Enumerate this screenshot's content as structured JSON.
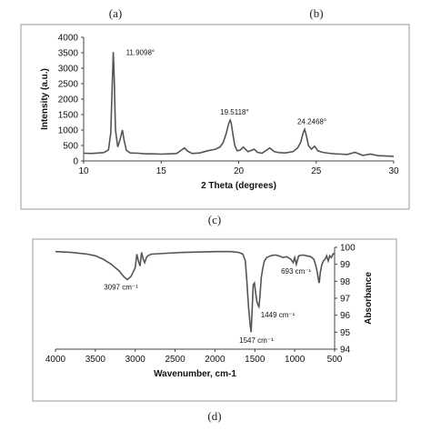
{
  "panel_labels": {
    "a": "(a)",
    "b": "(b)",
    "c": "(c)",
    "d": "(d)"
  },
  "chart_data": [
    {
      "type": "line",
      "xlabel": "2 Theta (degrees)",
      "ylabel": "Intensity (a.u.)",
      "xlim": [
        10,
        30
      ],
      "ylim": [
        0,
        4000
      ],
      "xticks": [
        "10",
        "15",
        "20",
        "25",
        "30"
      ],
      "yticks": [
        "0",
        "500",
        "1000",
        "1500",
        "2000",
        "2500",
        "3000",
        "3500",
        "4000"
      ],
      "grid": false,
      "color": "#555555",
      "annotations": [
        {
          "x": 11.91,
          "y": 3520,
          "text": "11.9098°"
        },
        {
          "x": 19.51,
          "y": 1320,
          "text": "19.5118°"
        },
        {
          "x": 24.25,
          "y": 1020,
          "text": "24.2468°"
        }
      ],
      "series": [
        {
          "x": [
            10,
            10.5,
            11,
            11.3,
            11.6,
            11.75,
            11.85,
            11.91,
            11.97,
            12.05,
            12.2,
            12.35,
            12.5,
            12.6,
            12.75,
            13,
            13.5,
            14,
            14.5,
            15,
            15.5,
            16,
            16.3,
            16.5,
            16.7,
            17,
            17.5,
            18,
            18.5,
            18.8,
            19.0,
            19.2,
            19.35,
            19.45,
            19.51,
            19.6,
            19.75,
            19.9,
            20.1,
            20.3,
            20.6,
            21.0,
            21.2,
            21.5,
            22.0,
            22.3,
            22.6,
            23.0,
            23.5,
            23.8,
            24.0,
            24.15,
            24.25,
            24.35,
            24.5,
            24.7,
            24.9,
            25.1,
            25.4,
            25.8,
            26.2,
            26.6,
            27,
            27.5,
            28,
            28.5,
            29,
            29.5,
            30
          ],
          "y": [
            250,
            240,
            260,
            270,
            360,
            900,
            2500,
            3520,
            2700,
            1000,
            450,
            700,
            1000,
            700,
            350,
            260,
            250,
            230,
            230,
            220,
            230,
            240,
            350,
            420,
            320,
            240,
            260,
            330,
            380,
            450,
            600,
            900,
            1200,
            1320,
            1250,
            950,
            500,
            330,
            350,
            450,
            300,
            380,
            280,
            250,
            420,
            300,
            270,
            260,
            300,
            420,
            600,
            900,
            1020,
            850,
            500,
            380,
            480,
            330,
            280,
            250,
            230,
            220,
            210,
            280,
            180,
            220,
            170,
            160,
            150
          ]
        }
      ]
    },
    {
      "type": "line",
      "xlabel": "Wavenumber, cm-1",
      "ylabel": "Absorbance",
      "xlim": [
        4000,
        500
      ],
      "ylim": [
        94,
        100
      ],
      "xticks": [
        "4000",
        "3500",
        "3000",
        "2500",
        "2000",
        "1500",
        "1000",
        "500"
      ],
      "yticks": [
        "94",
        "95",
        "96",
        "97",
        "98",
        "99",
        "100"
      ],
      "grid": false,
      "color": "#555555",
      "annotations": [
        {
          "x": 3097,
          "y": 98.1,
          "text": "3097 cm⁻¹"
        },
        {
          "x": 1547,
          "y": 94.9,
          "text": "1547 cm⁻¹"
        },
        {
          "x": 1449,
          "y": 96.3,
          "text": "1449 cm⁻¹"
        },
        {
          "x": 693,
          "y": 97.9,
          "text": "693 cm⁻¹"
        }
      ],
      "series": [
        {
          "x": [
            4000,
            3800,
            3600,
            3500,
            3400,
            3300,
            3200,
            3150,
            3100,
            3097,
            3050,
            3000,
            2980,
            2960,
            2940,
            2920,
            2900,
            2880,
            2860,
            2840,
            2800,
            2600,
            2400,
            2200,
            2000,
            1800,
            1700,
            1650,
            1620,
            1600,
            1580,
            1560,
            1547,
            1535,
            1520,
            1505,
            1490,
            1475,
            1460,
            1449,
            1435,
            1420,
            1400,
            1380,
            1350,
            1300,
            1250,
            1200,
            1150,
            1100,
            1050,
            1020,
            1000,
            980,
            950,
            900,
            850,
            800,
            760,
            740,
            720,
            700,
            693,
            680,
            660,
            640,
            620,
            600,
            580,
            560,
            540,
            520,
            500
          ],
          "y": [
            99.75,
            99.7,
            99.6,
            99.5,
            99.3,
            99.0,
            98.6,
            98.3,
            98.1,
            98.1,
            98.3,
            98.8,
            99.6,
            99.2,
            98.9,
            99.7,
            99.3,
            99.1,
            99.4,
            99.5,
            99.6,
            99.65,
            99.7,
            99.72,
            99.75,
            99.75,
            99.7,
            99.6,
            99.2,
            98.0,
            96.5,
            95.5,
            95.0,
            96.2,
            97.8,
            97.9,
            97.3,
            96.8,
            96.6,
            96.5,
            97.2,
            98.2,
            98.8,
            99.2,
            99.4,
            99.5,
            99.55,
            99.5,
            99.4,
            99.45,
            99.3,
            99.1,
            99.4,
            99.0,
            99.5,
            99.55,
            99.5,
            99.45,
            99.3,
            99.0,
            98.6,
            98.0,
            97.9,
            98.5,
            99.0,
            99.2,
            99.3,
            99.5,
            99.2,
            99.5,
            99.4,
            99.6,
            99.65
          ]
        }
      ]
    }
  ]
}
